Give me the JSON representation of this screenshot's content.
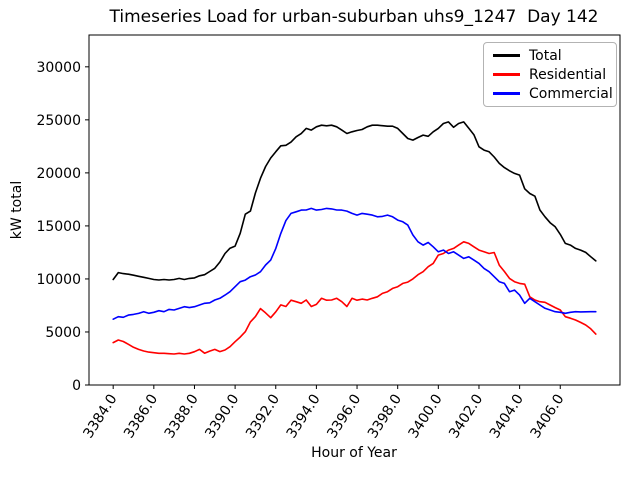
{
  "chart_data": {
    "type": "line",
    "title": "Timeseries Load for urban-suburban uhs9_1247  Day 142",
    "xlabel": "Hour of Year",
    "ylabel": "kW total",
    "xlim": [
      3382.81,
      3408.94
    ],
    "ylim": [
      0,
      33000
    ],
    "grid": false,
    "legend_position": "upper right",
    "x_ticks": [
      3384,
      3386,
      3388,
      3390,
      3392,
      3394,
      3396,
      3398,
      3400,
      3402,
      3404,
      3406
    ],
    "x_tick_labels": [
      "3384.0",
      "3386.0",
      "3388.0",
      "3390.0",
      "3392.0",
      "3394.0",
      "3396.0",
      "3398.0",
      "3400.0",
      "3402.0",
      "3404.0",
      "3406.0"
    ],
    "y_ticks": [
      0,
      5000,
      10000,
      15000,
      20000,
      25000,
      30000
    ],
    "y_tick_labels": [
      "0",
      "5000",
      "10000",
      "15000",
      "20000",
      "25000",
      "30000"
    ],
    "x_start": 3384.0,
    "x_step": 0.25,
    "series": [
      {
        "name": "Total",
        "color": "#000000",
        "values": [
          9950,
          10600,
          10500,
          10450,
          10350,
          10250,
          10150,
          10050,
          9950,
          9900,
          9950,
          9900,
          9950,
          10050,
          9950,
          10050,
          10100,
          10300,
          10400,
          10700,
          11000,
          11600,
          12400,
          12900,
          13100,
          14300,
          16100,
          16400,
          18100,
          19500,
          20600,
          21400,
          22000,
          22550,
          22600,
          22900,
          23400,
          23700,
          24190,
          24030,
          24340,
          24500,
          24440,
          24500,
          24340,
          24030,
          23715,
          23870,
          24000,
          24090,
          24340,
          24500,
          24500,
          24450,
          24405,
          24405,
          24190,
          23715,
          23245,
          23090,
          23340,
          23560,
          23450,
          23870,
          24190,
          24655,
          24810,
          24300,
          24655,
          24810,
          24200,
          23600,
          22460,
          22145,
          21990,
          21500,
          20890,
          20500,
          20200,
          19950,
          19790,
          18500,
          18060,
          17800,
          16500,
          15860,
          15300,
          14920,
          14200,
          13350,
          13190,
          12880,
          12720,
          12500,
          12100,
          11700
        ]
      },
      {
        "name": "Residential",
        "color": "#ff0000",
        "values": [
          4000,
          4240,
          4100,
          3835,
          3550,
          3360,
          3205,
          3100,
          3050,
          2990,
          2990,
          2950,
          2920,
          2990,
          2920,
          2990,
          3140,
          3360,
          3000,
          3200,
          3360,
          3150,
          3300,
          3610,
          4080,
          4520,
          5030,
          5950,
          6450,
          7200,
          6800,
          6350,
          6900,
          7550,
          7400,
          8000,
          7850,
          7700,
          8010,
          7400,
          7600,
          8170,
          8000,
          8010,
          8170,
          7850,
          7400,
          8170,
          8000,
          8100,
          8010,
          8170,
          8320,
          8640,
          8800,
          9110,
          9270,
          9580,
          9700,
          10000,
          10400,
          10680,
          11150,
          11465,
          12245,
          12400,
          12720,
          12880,
          13190,
          13505,
          13350,
          13030,
          12720,
          12560,
          12400,
          12495,
          11300,
          10700,
          10050,
          9740,
          9580,
          9500,
          8320,
          8010,
          7850,
          7800,
          7540,
          7300,
          7070,
          6440,
          6300,
          6130,
          5900,
          5655,
          5300,
          4800
        ]
      },
      {
        "name": "Commercial",
        "color": "#0000ff",
        "values": [
          6200,
          6440,
          6380,
          6595,
          6660,
          6755,
          6910,
          6760,
          6850,
          7005,
          6910,
          7130,
          7070,
          7225,
          7380,
          7300,
          7380,
          7540,
          7700,
          7755,
          8010,
          8170,
          8480,
          8795,
          9265,
          9740,
          9895,
          10210,
          10370,
          10680,
          11310,
          11780,
          12880,
          14290,
          15500,
          16180,
          16330,
          16490,
          16500,
          16650,
          16490,
          16550,
          16650,
          16600,
          16500,
          16490,
          16400,
          16180,
          16020,
          16180,
          16100,
          16020,
          15860,
          15900,
          16020,
          15860,
          15550,
          15390,
          15080,
          14140,
          13505,
          13190,
          13440,
          13030,
          12560,
          12720,
          12400,
          12560,
          12245,
          11935,
          12090,
          11780,
          11465,
          10995,
          10680,
          10210,
          9740,
          9580,
          8795,
          8950,
          8480,
          7700,
          8170,
          7850,
          7540,
          7230,
          7070,
          6910,
          6850,
          6760,
          6850,
          6910,
          6890,
          6900,
          6910,
          6910
        ]
      }
    ]
  }
}
